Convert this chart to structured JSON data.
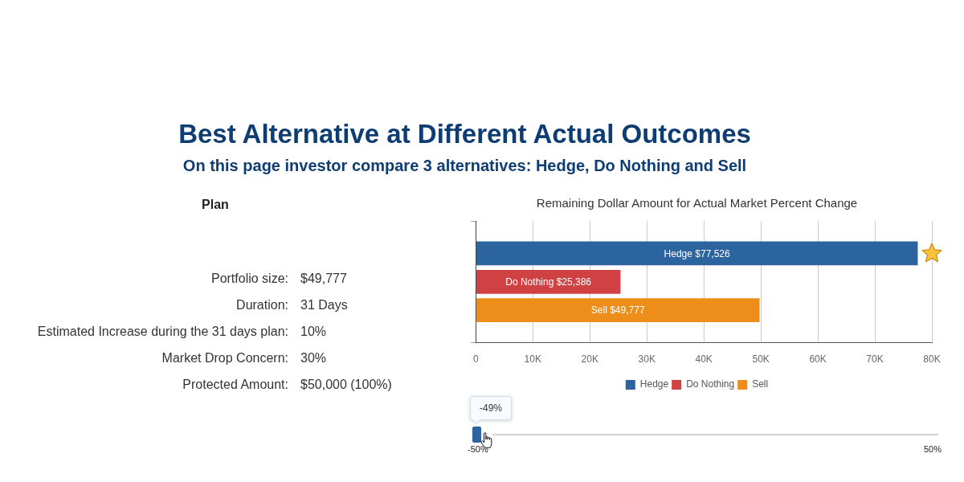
{
  "chart_data": [
    {
      "type": "other",
      "title": "Best Alternative at Different Actual Outcomes",
      "subtitle": "On this page investor compare 3 alternatives: Hedge, Do Nothing and Sell",
      "annotations": [
        "Plan",
        "Portfolio size:",
        "$49,777",
        "Duration:",
        "31 Days",
        "Estimated Increase during the 31 days plan:",
        "10%",
        "Market Drop Concern:",
        "30%",
        "Protected Amount:",
        "$50,000 (100%)"
      ]
    },
    {
      "type": "bar",
      "orientation": "horizontal",
      "title": "Remaining Dollar Amount for Actual Market Percent Change",
      "categories": [
        null
      ],
      "series": [
        {
          "name": "Hedge",
          "color": "#2c64a0",
          "values": [
            77526
          ],
          "value_labels": [
            "Hedge $77,526"
          ]
        },
        {
          "name": "Do Nothing",
          "color": "#d04144",
          "values": [
            25386
          ],
          "value_labels": [
            "Do Nothing $25,386"
          ]
        },
        {
          "name": "Sell",
          "color": "#ee8e1a",
          "values": [
            49777
          ],
          "value_labels": [
            "Sell $49,777"
          ]
        }
      ],
      "xlim": [
        0,
        80000
      ],
      "xticks": [
        0,
        {
          "value": 10000,
          "label": "10K"
        },
        {
          "value": 20000,
          "label": "20K"
        },
        {
          "value": 30000,
          "label": "30K"
        },
        {
          "value": 40000,
          "label": "40K"
        },
        {
          "value": 50000,
          "label": "50K"
        },
        {
          "value": 60000,
          "label": "60K"
        },
        {
          "value": 70000,
          "label": "70K"
        },
        {
          "value": 80000,
          "label": "80K"
        }
      ],
      "grid": "x",
      "legend": "bottom",
      "annotations": [
        "-49%",
        "-50%",
        "50%"
      ]
    }
  ]
}
